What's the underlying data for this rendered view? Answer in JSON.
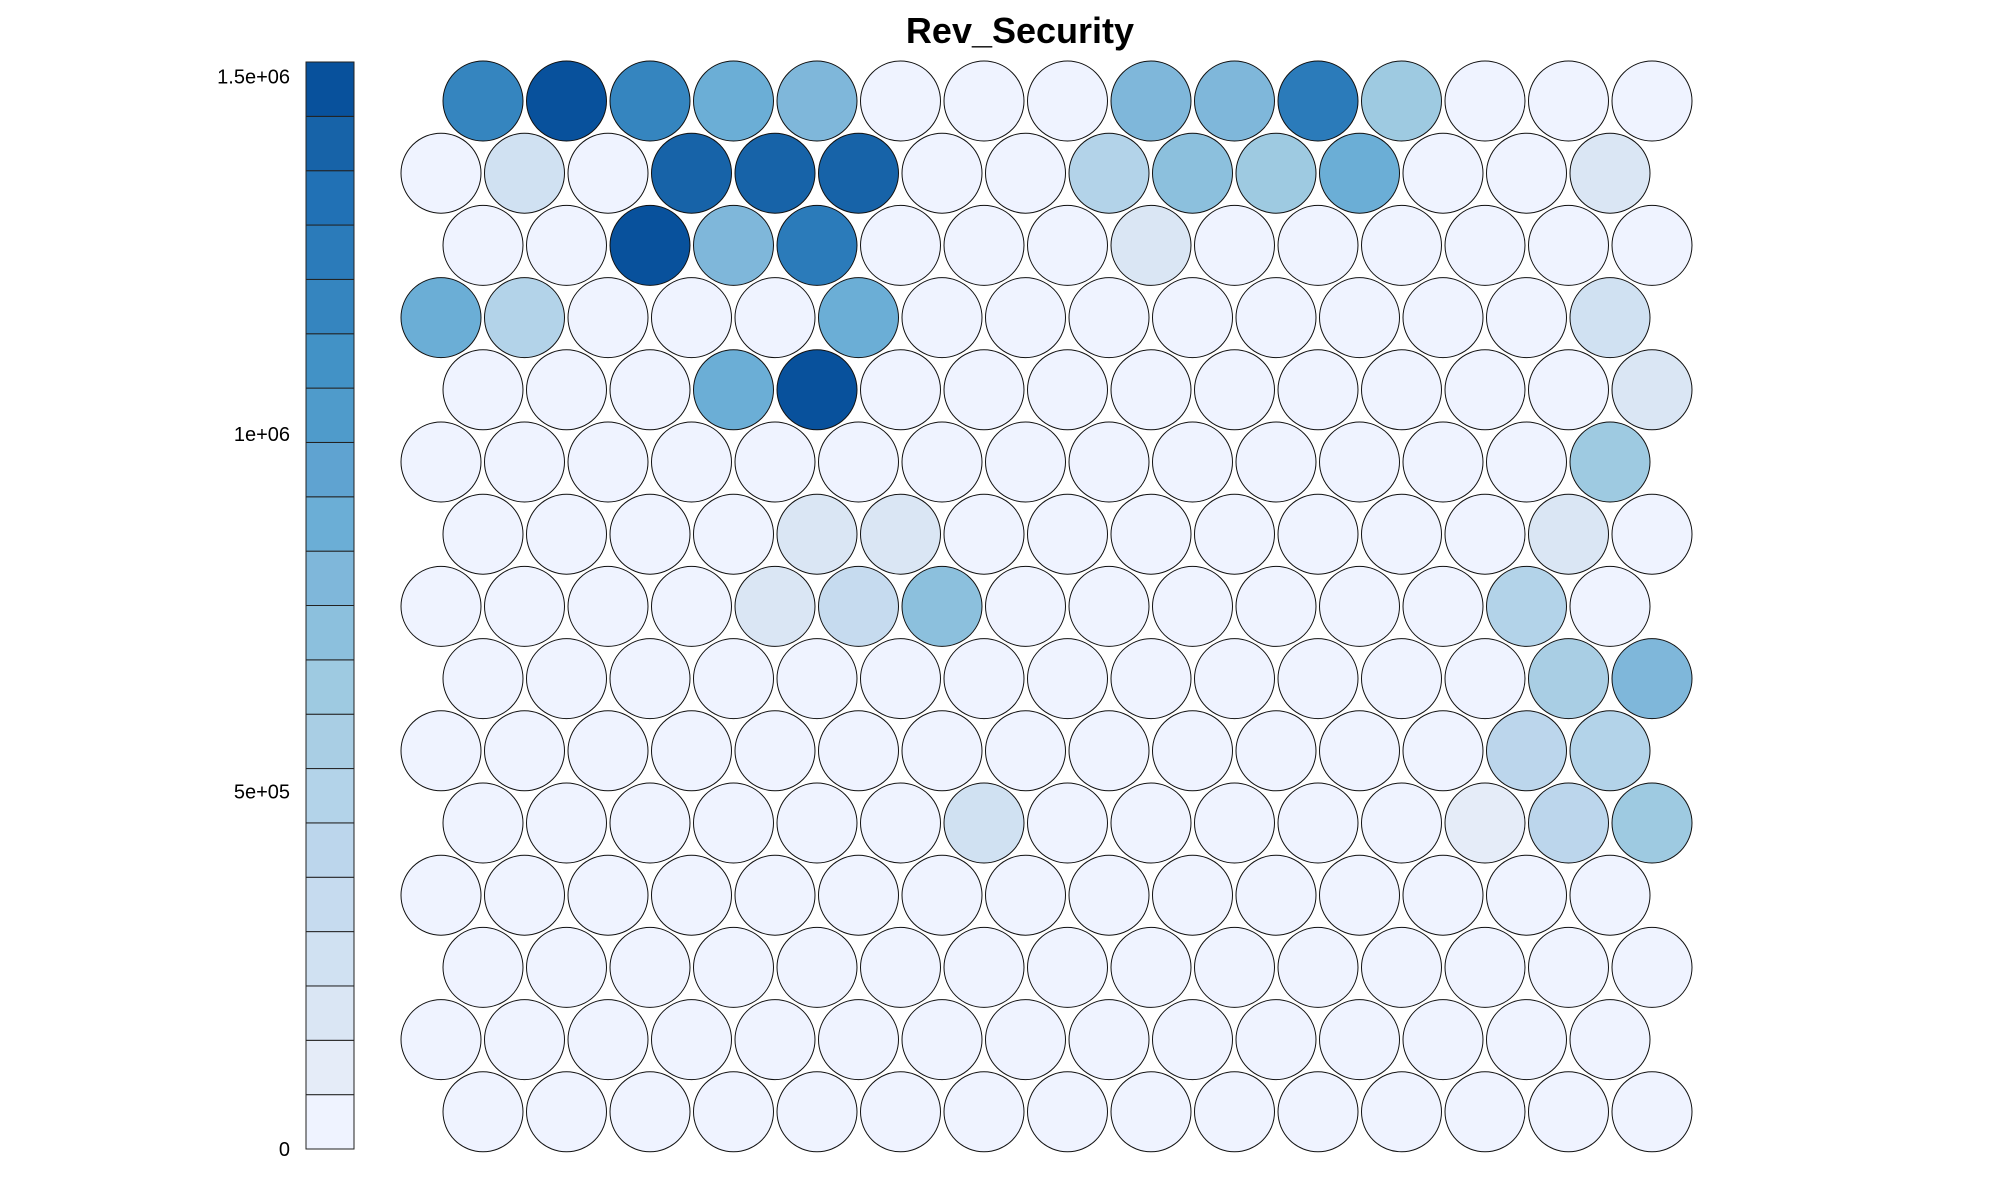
{
  "chart_data": {
    "type": "heatmap",
    "layout": "hexagonal-grid",
    "title": "Rev_Security",
    "rows": 15,
    "columns": 15,
    "color_scale": {
      "min": 0,
      "max": 1520000,
      "steps": 20,
      "ticks": [
        {
          "value": 0,
          "label": "0"
        },
        {
          "value": 500000,
          "label": "5e+05"
        },
        {
          "value": 1000000,
          "label": "1e+06"
        },
        {
          "value": 1500000,
          "label": "1.5e+06"
        }
      ],
      "colors": [
        "#eff3ff",
        "#e5ecf8",
        "#dae6f4",
        "#d0e1f2",
        "#c6dbef",
        "#bcd6ec",
        "#b3d3e9",
        "#a9cee4",
        "#9ecae1",
        "#8cc0dd",
        "#7fb7da",
        "#6baed6",
        "#5fa3d1",
        "#4f9bcb",
        "#4292c6",
        "#3585bf",
        "#2b7bba",
        "#2171b5",
        "#1763a8",
        "#08519c"
      ]
    },
    "values": [
      [
        1200000,
        1520000,
        1150000,
        850000,
        820000,
        0,
        0,
        0,
        800000,
        780000,
        1220000,
        650000,
        0,
        50000,
        0
      ],
      [
        60000,
        300000,
        0,
        1420000,
        1390000,
        1410000,
        0,
        0,
        480000,
        720000,
        650000,
        850000,
        0,
        0,
        190000
      ],
      [
        0,
        0,
        1520000,
        800000,
        1220000,
        0,
        0,
        0,
        200000,
        0,
        60000,
        60000,
        0,
        0,
        0
      ],
      [
        880000,
        520000,
        0,
        0,
        0,
        850000,
        0,
        0,
        0,
        0,
        60000,
        0,
        0,
        0,
        300000
      ],
      [
        60000,
        0,
        0,
        880000,
        1520000,
        60000,
        0,
        0,
        0,
        0,
        0,
        0,
        0,
        0,
        210000
      ],
      [
        0,
        0,
        0,
        0,
        60000,
        0,
        0,
        0,
        0,
        0,
        60000,
        0,
        0,
        0,
        650000
      ],
      [
        0,
        0,
        0,
        0,
        190000,
        200000,
        0,
        0,
        0,
        0,
        0,
        0,
        0,
        200000,
        0
      ],
      [
        0,
        0,
        0,
        0,
        190000,
        320000,
        700000,
        0,
        0,
        0,
        0,
        0,
        60000,
        500000,
        0
      ],
      [
        0,
        0,
        0,
        0,
        0,
        0,
        0,
        0,
        0,
        0,
        60000,
        0,
        0,
        600000,
        800000
      ],
      [
        60000,
        0,
        0,
        0,
        0,
        0,
        0,
        0,
        0,
        0,
        0,
        0,
        60000,
        400000,
        500000
      ],
      [
        0,
        0,
        0,
        0,
        0,
        0,
        300000,
        0,
        0,
        60000,
        0,
        0,
        80000,
        400000,
        620000
      ],
      [
        0,
        0,
        0,
        0,
        0,
        0,
        0,
        0,
        0,
        0,
        0,
        0,
        0,
        0,
        60000
      ],
      [
        0,
        0,
        0,
        0,
        0,
        0,
        0,
        0,
        0,
        0,
        0,
        0,
        0,
        0,
        0
      ],
      [
        0,
        0,
        0,
        0,
        0,
        0,
        0,
        0,
        0,
        0,
        0,
        0,
        0,
        0,
        0
      ],
      [
        0,
        0,
        0,
        0,
        0,
        0,
        0,
        0,
        0,
        0,
        0,
        0,
        0,
        0,
        0
      ]
    ]
  }
}
